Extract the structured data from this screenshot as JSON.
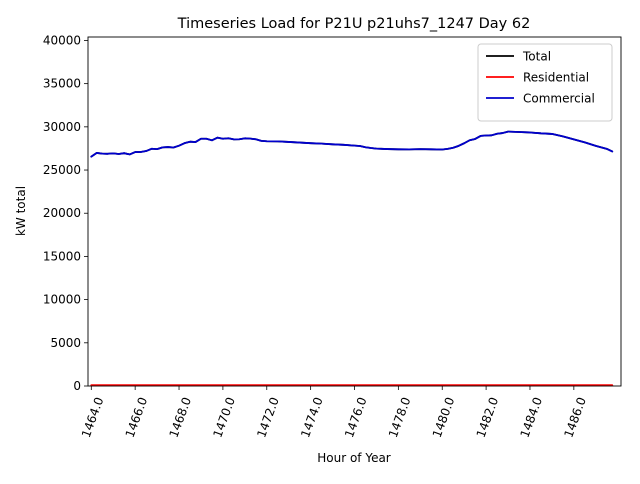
{
  "chart_data": {
    "type": "line",
    "title": "Timeseries Load for P21U p21uhs7_1247  Day 62",
    "xlabel": "Hour of Year",
    "ylabel": "kW total",
    "xlim": [
      1463.85,
      1488.15
    ],
    "ylim": [
      0,
      40400
    ],
    "x_ticks": [
      1464,
      1466,
      1468,
      1470,
      1472,
      1474,
      1476,
      1478,
      1480,
      1482,
      1484,
      1486
    ],
    "x_tick_labels": [
      "1464.0",
      "1466.0",
      "1468.0",
      "1470.0",
      "1472.0",
      "1474.0",
      "1476.0",
      "1478.0",
      "1480.0",
      "1482.0",
      "1484.0",
      "1486.0"
    ],
    "y_ticks": [
      0,
      5000,
      10000,
      15000,
      20000,
      25000,
      30000,
      35000,
      40000
    ],
    "y_tick_labels": [
      "0",
      "5000",
      "10000",
      "15000",
      "20000",
      "25000",
      "30000",
      "35000",
      "40000"
    ],
    "grid": false,
    "legend_position": "top-right",
    "x": [
      1464.0,
      1464.25,
      1464.5,
      1464.75,
      1465.0,
      1465.25,
      1465.5,
      1465.75,
      1466.0,
      1466.25,
      1466.5,
      1466.75,
      1467.0,
      1467.25,
      1467.5,
      1467.75,
      1468.0,
      1468.25,
      1468.5,
      1468.75,
      1469.0,
      1469.25,
      1469.5,
      1469.75,
      1470.0,
      1470.25,
      1470.5,
      1470.75,
      1471.0,
      1471.25,
      1471.5,
      1471.75,
      1472.0,
      1472.5,
      1473.0,
      1473.5,
      1474.0,
      1474.5,
      1475.0,
      1475.5,
      1476.0,
      1476.25,
      1476.5,
      1476.75,
      1477.0,
      1477.5,
      1478.0,
      1478.5,
      1479.0,
      1479.5,
      1480.0,
      1480.25,
      1480.5,
      1480.75,
      1481.0,
      1481.25,
      1481.5,
      1481.75,
      1482.0,
      1482.25,
      1482.5,
      1482.75,
      1483.0,
      1483.5,
      1484.0,
      1484.5,
      1485.0,
      1485.5,
      1486.0,
      1486.5,
      1487.0,
      1487.5,
      1487.75
    ],
    "series": [
      {
        "name": "Total",
        "color": "#000000",
        "values": [
          26550,
          26980,
          26900,
          26880,
          26930,
          26860,
          26950,
          26810,
          27080,
          27090,
          27200,
          27460,
          27420,
          27620,
          27660,
          27610,
          27820,
          28110,
          28280,
          28240,
          28620,
          28620,
          28440,
          28750,
          28620,
          28680,
          28550,
          28560,
          28670,
          28640,
          28560,
          28380,
          28330,
          28320,
          28250,
          28180,
          28110,
          28060,
          27980,
          27920,
          27830,
          27780,
          27640,
          27550,
          27480,
          27430,
          27400,
          27390,
          27420,
          27400,
          27380,
          27450,
          27580,
          27800,
          28100,
          28450,
          28600,
          28950,
          29000,
          29020,
          29200,
          29280,
          29450,
          29400,
          29350,
          29250,
          29180,
          28900,
          28550,
          28200,
          27800,
          27450,
          27150
        ]
      },
      {
        "name": "Residential",
        "color": "#ff0000",
        "values": [
          95,
          95,
          95,
          95,
          95,
          95,
          95,
          95,
          95,
          95,
          95,
          95,
          95,
          95,
          95,
          95,
          95,
          95,
          95,
          95,
          95,
          95,
          95,
          95,
          95,
          95,
          95,
          95,
          95,
          95,
          95,
          95,
          95,
          95,
          95,
          95,
          95,
          95,
          95,
          95,
          95,
          95,
          95,
          95,
          95,
          95,
          95,
          95,
          95,
          95,
          95,
          95,
          95,
          95,
          95,
          95,
          95,
          95,
          95,
          95,
          95,
          95,
          95,
          95,
          95,
          95,
          95,
          95,
          95,
          95,
          95,
          95,
          95
        ]
      },
      {
        "name": "Commercial",
        "color": "#0000cc",
        "values": [
          26550,
          26980,
          26900,
          26880,
          26930,
          26860,
          26950,
          26810,
          27080,
          27090,
          27200,
          27460,
          27420,
          27620,
          27660,
          27610,
          27820,
          28110,
          28280,
          28240,
          28620,
          28620,
          28440,
          28750,
          28620,
          28680,
          28550,
          28560,
          28670,
          28640,
          28560,
          28380,
          28330,
          28320,
          28250,
          28180,
          28110,
          28060,
          27980,
          27920,
          27830,
          27780,
          27640,
          27550,
          27480,
          27430,
          27400,
          27390,
          27420,
          27400,
          27380,
          27450,
          27580,
          27800,
          28100,
          28450,
          28600,
          28950,
          29000,
          29020,
          29200,
          29280,
          29450,
          29400,
          29350,
          29250,
          29180,
          28900,
          28550,
          28200,
          27800,
          27450,
          27150
        ]
      }
    ]
  }
}
